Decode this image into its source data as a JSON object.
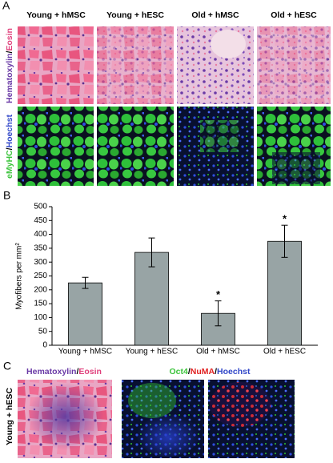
{
  "panel_a": {
    "letter": "A",
    "columns": [
      "Young + hMSC",
      "Young + hESC",
      "Old + hMSC",
      "Old + hESC"
    ],
    "row_labels": [
      [
        "Hematoxylin",
        "/",
        "Eosin"
      ],
      [
        "eMyHC",
        "/",
        "Hoechst"
      ]
    ]
  },
  "chart_data": {
    "type": "bar",
    "letter": "B",
    "y_label": "Myofibers per mm²",
    "categories": [
      "Young + hMSC",
      "Young + hESC",
      "Old + hMSC",
      "Old + hESC"
    ],
    "values": [
      225,
      335,
      115,
      375
    ],
    "errors": [
      20,
      52,
      45,
      58
    ],
    "color": "#98a4a5",
    "ylim": [
      0,
      500
    ],
    "yticks": [
      0,
      50,
      100,
      150,
      200,
      250,
      300,
      350,
      400,
      450,
      500
    ],
    "annotations": [
      {
        "category": 2,
        "text": "*"
      },
      {
        "category": 3,
        "text": "*"
      }
    ]
  },
  "panel_c": {
    "letter": "C",
    "row_label": "Young + hESC",
    "header_he": [
      "Hematoxylin",
      "/",
      "Eosin"
    ],
    "header_fluor": [
      "Oct4",
      "/",
      "NuMA",
      "/",
      "Hoechst"
    ]
  }
}
